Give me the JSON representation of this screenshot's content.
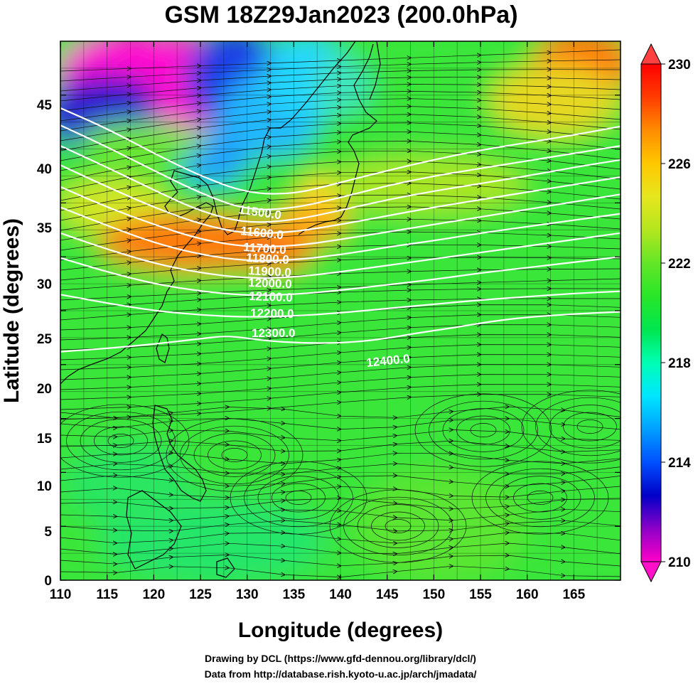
{
  "title": "GSM 18Z29Jan2023 (200.0hPa)",
  "x_axis": {
    "label": "Longitude (degrees)",
    "range": [
      110,
      170
    ],
    "ticks": [
      "110",
      "115",
      "120",
      "125",
      "130",
      "135",
      "140",
      "145",
      "150",
      "155",
      "160",
      "165"
    ]
  },
  "y_axis": {
    "label": "Latitude  (degrees)",
    "range": [
      0,
      50
    ],
    "ticks": [
      "0",
      "5",
      "10",
      "15",
      "20",
      "25",
      "30",
      "35",
      "40",
      "45"
    ]
  },
  "colorbar": {
    "range": [
      210,
      230
    ],
    "ticks": [
      "210",
      "214",
      "218",
      "222",
      "226",
      "230"
    ],
    "colors": [
      "#ff00c8",
      "#8c00c8",
      "#0000c8",
      "#0050ff",
      "#00a0ff",
      "#00e6ff",
      "#00ffb4",
      "#00e650",
      "#28e628",
      "#64e628",
      "#b4e61e",
      "#e6e61e",
      "#ffc800",
      "#ff8c00",
      "#ff3c00",
      "#ff0000"
    ]
  },
  "contours": [
    {
      "label": "11500.0",
      "points": [
        [
          110,
          43.8
        ],
        [
          115,
          41.9
        ],
        [
          120,
          39.6
        ],
        [
          125,
          37.5
        ],
        [
          130,
          35.9
        ],
        [
          135,
          35.8
        ],
        [
          140,
          36.9
        ],
        [
          145,
          38.0
        ],
        [
          150,
          39.0
        ],
        [
          155,
          39.9
        ],
        [
          160,
          40.6
        ],
        [
          165,
          41.3
        ],
        [
          170,
          42.1
        ]
      ]
    },
    {
      "label": "11600.0",
      "points": [
        [
          110,
          42.2
        ],
        [
          115,
          40.2
        ],
        [
          120,
          38.0
        ],
        [
          125,
          35.9
        ],
        [
          130,
          34.3
        ],
        [
          135,
          34.5
        ],
        [
          140,
          35.5
        ],
        [
          145,
          36.6
        ],
        [
          150,
          37.5
        ],
        [
          155,
          38.2
        ],
        [
          160,
          38.9
        ],
        [
          165,
          39.6
        ],
        [
          170,
          40.3
        ]
      ]
    },
    {
      "label": "11700.0",
      "points": [
        [
          110,
          40.3
        ],
        [
          115,
          38.3
        ],
        [
          120,
          36.2
        ],
        [
          125,
          34.2
        ],
        [
          130,
          33.1
        ],
        [
          135,
          33.4
        ],
        [
          140,
          34.3
        ],
        [
          145,
          35.3
        ],
        [
          150,
          36.1
        ],
        [
          155,
          36.8
        ],
        [
          160,
          37.5
        ],
        [
          165,
          38.3
        ],
        [
          170,
          39.0
        ]
      ]
    },
    {
      "label": "11800.0",
      "points": [
        [
          110,
          38.5
        ],
        [
          115,
          36.5
        ],
        [
          120,
          34.6
        ],
        [
          125,
          33.0
        ],
        [
          130,
          32.1
        ],
        [
          135,
          32.3
        ],
        [
          140,
          33.0
        ],
        [
          145,
          33.8
        ],
        [
          150,
          34.6
        ],
        [
          155,
          35.3
        ],
        [
          160,
          36.0
        ],
        [
          165,
          36.7
        ],
        [
          170,
          37.4
        ]
      ]
    },
    {
      "label": "11900.0",
      "points": [
        [
          110,
          36.5
        ],
        [
          115,
          34.6
        ],
        [
          120,
          33.0
        ],
        [
          125,
          31.6
        ],
        [
          130,
          30.9
        ],
        [
          135,
          31.0
        ],
        [
          140,
          31.6
        ],
        [
          145,
          32.3
        ],
        [
          150,
          33.0
        ],
        [
          155,
          33.7
        ],
        [
          160,
          34.4
        ],
        [
          165,
          35.1
        ],
        [
          170,
          35.8
        ]
      ]
    },
    {
      "label": "12000.0",
      "points": [
        [
          110,
          34.6
        ],
        [
          115,
          32.9
        ],
        [
          120,
          31.3
        ],
        [
          125,
          30.2
        ],
        [
          130,
          29.6
        ],
        [
          135,
          29.7
        ],
        [
          140,
          30.2
        ],
        [
          145,
          30.9
        ],
        [
          150,
          31.5
        ],
        [
          155,
          32.2
        ],
        [
          160,
          32.8
        ],
        [
          165,
          33.4
        ],
        [
          170,
          34.0
        ]
      ]
    },
    {
      "label": "12100.0",
      "points": [
        [
          110,
          32.2
        ],
        [
          115,
          30.7
        ],
        [
          120,
          29.4
        ],
        [
          125,
          28.5
        ],
        [
          130,
          28.0
        ],
        [
          135,
          28.1
        ],
        [
          140,
          28.6
        ],
        [
          145,
          29.2
        ],
        [
          150,
          29.8
        ],
        [
          155,
          30.4
        ],
        [
          160,
          31.0
        ],
        [
          165,
          31.6
        ],
        [
          170,
          32.2
        ]
      ]
    },
    {
      "label": "12200.0",
      "points": [
        [
          110,
          29.9
        ],
        [
          115,
          28.6
        ],
        [
          120,
          27.5
        ],
        [
          125,
          26.8
        ],
        [
          130,
          26.4
        ],
        [
          135,
          26.5
        ],
        [
          140,
          26.9
        ],
        [
          145,
          27.4
        ],
        [
          150,
          27.9
        ],
        [
          155,
          28.5
        ],
        [
          160,
          29.0
        ],
        [
          165,
          29.5
        ],
        [
          170,
          30.0
        ]
      ]
    },
    {
      "label": "12300.0",
      "points": [
        [
          110,
          26.5
        ],
        [
          115,
          25.7
        ],
        [
          120,
          25.0
        ],
        [
          125,
          24.6
        ],
        [
          130,
          24.4
        ],
        [
          135,
          24.5
        ],
        [
          140,
          24.8
        ],
        [
          145,
          25.2
        ],
        [
          150,
          25.6
        ],
        [
          155,
          26.0
        ],
        [
          160,
          26.3
        ],
        [
          165,
          26.6
        ],
        [
          170,
          26.8
        ]
      ]
    },
    {
      "label": "12400.0",
      "points": [
        [
          110,
          21.2
        ],
        [
          115,
          21.5
        ],
        [
          120,
          21.9
        ],
        [
          125,
          22.4
        ],
        [
          128,
          22.7
        ],
        [
          132,
          22.2
        ],
        [
          136,
          22.0
        ],
        [
          140,
          22.0
        ],
        [
          144,
          22.3
        ],
        [
          148,
          22.9
        ],
        [
          152,
          23.4
        ],
        [
          156,
          24.0
        ],
        [
          160,
          24.4
        ],
        [
          165,
          24.7
        ],
        [
          170,
          24.9
        ]
      ]
    }
  ],
  "credits": {
    "line1": "Drawing by DCL (https://www.gfd-dennou.org/library/dcl/)",
    "line2": "Data from http://database.rish.kyoto-u.ac.jp/arch/jmadata/"
  }
}
